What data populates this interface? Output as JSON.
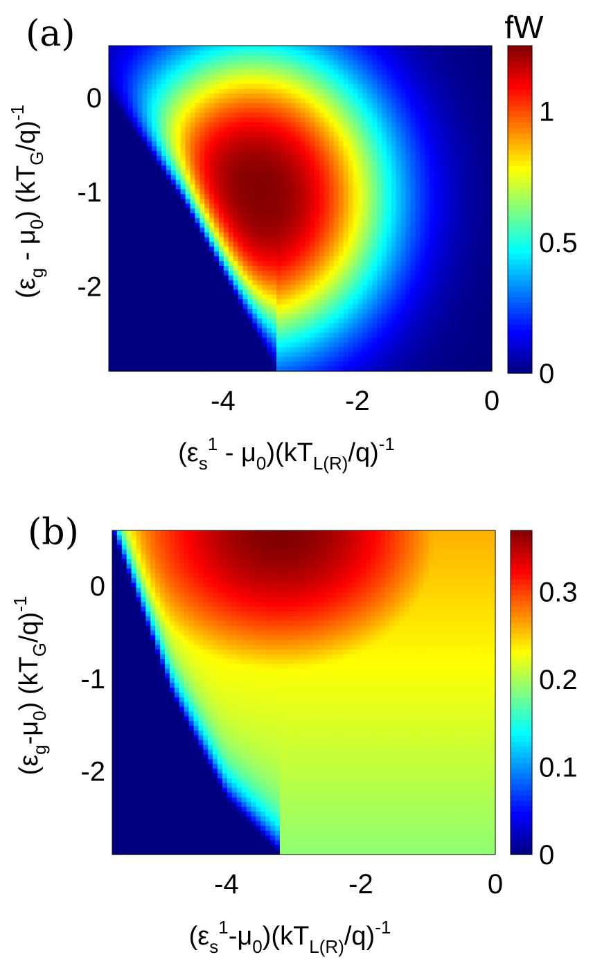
{
  "chart_data": [
    {
      "type": "heatmap",
      "panel_label": "(a)",
      "colorbar_unit": "fW",
      "xlabel": "(εs1 - μ0)(kTL(R)/q)-1",
      "ylabel": "(εg - μ0) (kTG/q)-1",
      "xlim": [
        -5.7,
        0
      ],
      "ylim": [
        -2.9,
        0.55
      ],
      "xticks": [
        {
          "v": -4,
          "label": "-4"
        },
        {
          "v": -2,
          "label": "-2"
        },
        {
          "v": 0,
          "label": "0"
        }
      ],
      "yticks": [
        {
          "v": 0,
          "label": "0"
        },
        {
          "v": -1,
          "label": "-1"
        },
        {
          "v": -2,
          "label": "-2"
        }
      ],
      "clim": [
        0,
        1.25
      ],
      "cticks": [
        {
          "v": 0,
          "label": "0"
        },
        {
          "v": 0.5,
          "label": "0.5"
        },
        {
          "v": 1,
          "label": "1"
        }
      ],
      "colormap": "jet",
      "peak": {
        "x": -3.55,
        "y": -1.05,
        "value": 1.25
      },
      "zero_region_boundary": [
        [
          -5.7,
          0.05
        ],
        [
          -4.6,
          -1.1
        ],
        [
          -3.9,
          -2.0
        ],
        [
          -3.2,
          -2.9
        ]
      ]
    },
    {
      "type": "heatmap",
      "panel_label": "(b)",
      "colorbar_unit": "",
      "xlabel": "(εs1-μ0)(kTL(R)/q)-1",
      "ylabel": "(εg-μ0) (kTG/q)-1",
      "xlim": [
        -5.7,
        0
      ],
      "ylim": [
        -2.9,
        0.6
      ],
      "xticks": [
        {
          "v": -4,
          "label": "-4"
        },
        {
          "v": -2,
          "label": "-2"
        },
        {
          "v": 0,
          "label": "0"
        }
      ],
      "yticks": [
        {
          "v": 0,
          "label": "0"
        },
        {
          "v": -1,
          "label": "-1"
        },
        {
          "v": -2,
          "label": "-2"
        }
      ],
      "clim": [
        0,
        0.37
      ],
      "cticks": [
        {
          "v": 0,
          "label": "0"
        },
        {
          "v": 0.1,
          "label": "0.1"
        },
        {
          "v": 0.2,
          "label": "0.2"
        },
        {
          "v": 0.3,
          "label": "0.3"
        }
      ],
      "colormap": "jet",
      "peak": {
        "x": -3.2,
        "y": 0.6,
        "value": 0.37
      },
      "zero_region_boundary": [
        [
          -5.7,
          0.6
        ],
        [
          -4.8,
          -1.2
        ],
        [
          -4.0,
          -2.3
        ],
        [
          -3.2,
          -2.9
        ]
      ]
    }
  ]
}
